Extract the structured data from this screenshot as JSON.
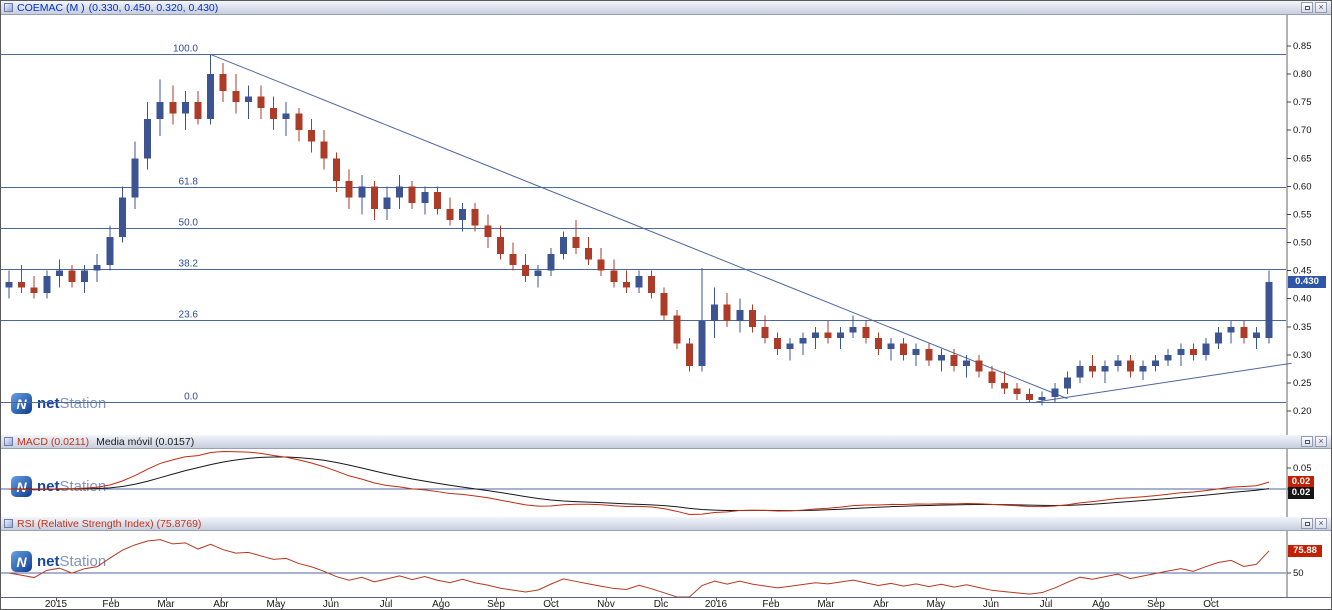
{
  "window_controls": {
    "close": "×"
  },
  "panels": {
    "price": {
      "symbol": "COEMAC (M )",
      "ohlc_text": "(0.330, 0.450, 0.320, 0.430)",
      "last_price_label": "0.430"
    },
    "macd": {
      "title": "MACD (0.0211)",
      "subtitle": "Media móvil (0.0157)",
      "value_badge": "0.02",
      "signal_badge": "0.02"
    },
    "rsi": {
      "title": "RSI (Relative Strength Index) (75.8769)",
      "value_badge": "75.88"
    }
  },
  "watermark": {
    "icon_letter": "N",
    "brand_bold": "net",
    "brand_light": "Station"
  },
  "chart_data": [
    {
      "type": "candlestick",
      "symbol": "COEMAC",
      "timeframe": "M",
      "last_ohlc": {
        "open": 0.33,
        "high": 0.45,
        "low": 0.32,
        "close": 0.43
      },
      "last_close": 0.43,
      "ylim": [
        0.157,
        0.907
      ],
      "y_ticks": [
        0.85,
        0.8,
        0.75,
        0.7,
        0.65,
        0.6,
        0.55,
        0.5,
        0.45,
        0.4,
        0.35,
        0.3,
        0.25,
        0.2
      ],
      "colors": {
        "up": "#3d5493",
        "down": "#ac3b28",
        "grid": "#4c66a0",
        "fib_label": "#2d4a96"
      },
      "fib_levels": [
        {
          "label": "100.0",
          "price": 0.835
        },
        {
          "label": "61.8",
          "price": 0.598
        },
        {
          "label": "50.0",
          "price": 0.525
        },
        {
          "label": "38.2",
          "price": 0.452
        },
        {
          "label": "23.6",
          "price": 0.361
        },
        {
          "label": "0.0",
          "price": 0.215
        }
      ],
      "trendlines": [
        {
          "name": "descending-resistance",
          "i1": 16,
          "p1": 0.835,
          "i2": 84,
          "p2": 0.222
        },
        {
          "name": "ascending-support",
          "i1": 81.5,
          "p1": 0.216,
          "i2": 101.8,
          "p2": 0.285
        }
      ],
      "x_axis": {
        "labels": [
          "2015",
          "Feb",
          "Mar",
          "Abr",
          "May",
          "Jun",
          "Jul",
          "Ago",
          "Sep",
          "Oct",
          "Nov",
          "Dic",
          "2016",
          "Feb",
          "Mar",
          "Abr",
          "May",
          "Jun",
          "Jul",
          "Ago",
          "Sep",
          "Oct"
        ],
        "first_tick_index": 3.73,
        "ticks_every_n_candles": 4.365
      },
      "ohlc": [
        [
          0.42,
          0.45,
          0.4,
          0.43
        ],
        [
          0.43,
          0.46,
          0.41,
          0.42
        ],
        [
          0.42,
          0.44,
          0.4,
          0.41
        ],
        [
          0.41,
          0.45,
          0.4,
          0.44
        ],
        [
          0.44,
          0.47,
          0.42,
          0.45
        ],
        [
          0.45,
          0.46,
          0.42,
          0.43
        ],
        [
          0.43,
          0.46,
          0.41,
          0.45
        ],
        [
          0.45,
          0.48,
          0.43,
          0.46
        ],
        [
          0.46,
          0.53,
          0.45,
          0.51
        ],
        [
          0.51,
          0.6,
          0.5,
          0.58
        ],
        [
          0.58,
          0.68,
          0.56,
          0.65
        ],
        [
          0.65,
          0.75,
          0.63,
          0.72
        ],
        [
          0.72,
          0.79,
          0.69,
          0.75
        ],
        [
          0.75,
          0.78,
          0.71,
          0.73
        ],
        [
          0.73,
          0.77,
          0.7,
          0.75
        ],
        [
          0.75,
          0.77,
          0.71,
          0.72
        ],
        [
          0.72,
          0.835,
          0.71,
          0.8
        ],
        [
          0.8,
          0.82,
          0.75,
          0.77
        ],
        [
          0.77,
          0.8,
          0.73,
          0.75
        ],
        [
          0.75,
          0.78,
          0.72,
          0.76
        ],
        [
          0.76,
          0.78,
          0.72,
          0.74
        ],
        [
          0.74,
          0.76,
          0.7,
          0.72
        ],
        [
          0.72,
          0.75,
          0.69,
          0.73
        ],
        [
          0.73,
          0.74,
          0.68,
          0.7
        ],
        [
          0.7,
          0.72,
          0.66,
          0.68
        ],
        [
          0.68,
          0.7,
          0.63,
          0.65
        ],
        [
          0.65,
          0.66,
          0.59,
          0.61
        ],
        [
          0.61,
          0.63,
          0.56,
          0.58
        ],
        [
          0.58,
          0.62,
          0.55,
          0.6
        ],
        [
          0.6,
          0.61,
          0.54,
          0.56
        ],
        [
          0.56,
          0.6,
          0.54,
          0.58
        ],
        [
          0.58,
          0.62,
          0.56,
          0.6
        ],
        [
          0.6,
          0.61,
          0.56,
          0.57
        ],
        [
          0.57,
          0.6,
          0.55,
          0.59
        ],
        [
          0.59,
          0.6,
          0.55,
          0.56
        ],
        [
          0.56,
          0.58,
          0.53,
          0.54
        ],
        [
          0.54,
          0.57,
          0.52,
          0.56
        ],
        [
          0.56,
          0.57,
          0.52,
          0.53
        ],
        [
          0.53,
          0.55,
          0.49,
          0.51
        ],
        [
          0.51,
          0.53,
          0.47,
          0.48
        ],
        [
          0.48,
          0.5,
          0.45,
          0.46
        ],
        [
          0.46,
          0.48,
          0.43,
          0.44
        ],
        [
          0.44,
          0.46,
          0.42,
          0.45
        ],
        [
          0.45,
          0.49,
          0.44,
          0.48
        ],
        [
          0.48,
          0.52,
          0.47,
          0.51
        ],
        [
          0.51,
          0.54,
          0.48,
          0.49
        ],
        [
          0.49,
          0.51,
          0.46,
          0.47
        ],
        [
          0.47,
          0.49,
          0.44,
          0.45
        ],
        [
          0.45,
          0.47,
          0.42,
          0.43
        ],
        [
          0.43,
          0.45,
          0.41,
          0.42
        ],
        [
          0.42,
          0.45,
          0.41,
          0.44
        ],
        [
          0.44,
          0.45,
          0.4,
          0.41
        ],
        [
          0.41,
          0.42,
          0.36,
          0.37
        ],
        [
          0.37,
          0.38,
          0.31,
          0.32
        ],
        [
          0.32,
          0.33,
          0.27,
          0.28
        ],
        [
          0.28,
          0.455,
          0.27,
          0.36
        ],
        [
          0.36,
          0.42,
          0.33,
          0.39
        ],
        [
          0.39,
          0.41,
          0.35,
          0.36
        ],
        [
          0.36,
          0.4,
          0.34,
          0.38
        ],
        [
          0.38,
          0.39,
          0.34,
          0.35
        ],
        [
          0.35,
          0.37,
          0.32,
          0.33
        ],
        [
          0.33,
          0.34,
          0.3,
          0.31
        ],
        [
          0.31,
          0.33,
          0.29,
          0.32
        ],
        [
          0.32,
          0.34,
          0.3,
          0.33
        ],
        [
          0.33,
          0.35,
          0.31,
          0.34
        ],
        [
          0.34,
          0.36,
          0.32,
          0.33
        ],
        [
          0.33,
          0.35,
          0.31,
          0.34
        ],
        [
          0.34,
          0.37,
          0.33,
          0.35
        ],
        [
          0.35,
          0.36,
          0.32,
          0.33
        ],
        [
          0.33,
          0.34,
          0.3,
          0.31
        ],
        [
          0.31,
          0.33,
          0.29,
          0.32
        ],
        [
          0.32,
          0.33,
          0.29,
          0.3
        ],
        [
          0.3,
          0.32,
          0.28,
          0.31
        ],
        [
          0.31,
          0.32,
          0.28,
          0.29
        ],
        [
          0.29,
          0.31,
          0.27,
          0.3
        ],
        [
          0.3,
          0.31,
          0.27,
          0.28
        ],
        [
          0.28,
          0.3,
          0.26,
          0.29
        ],
        [
          0.29,
          0.3,
          0.26,
          0.27
        ],
        [
          0.27,
          0.28,
          0.24,
          0.25
        ],
        [
          0.25,
          0.27,
          0.23,
          0.24
        ],
        [
          0.24,
          0.25,
          0.22,
          0.23
        ],
        [
          0.23,
          0.24,
          0.215,
          0.22
        ],
        [
          0.22,
          0.235,
          0.21,
          0.225
        ],
        [
          0.225,
          0.25,
          0.215,
          0.24
        ],
        [
          0.24,
          0.27,
          0.23,
          0.26
        ],
        [
          0.26,
          0.29,
          0.25,
          0.28
        ],
        [
          0.28,
          0.3,
          0.26,
          0.27
        ],
        [
          0.27,
          0.29,
          0.25,
          0.28
        ],
        [
          0.28,
          0.3,
          0.27,
          0.29
        ],
        [
          0.29,
          0.3,
          0.26,
          0.27
        ],
        [
          0.27,
          0.29,
          0.255,
          0.28
        ],
        [
          0.28,
          0.3,
          0.27,
          0.29
        ],
        [
          0.29,
          0.31,
          0.28,
          0.3
        ],
        [
          0.3,
          0.32,
          0.28,
          0.31
        ],
        [
          0.31,
          0.32,
          0.29,
          0.3
        ],
        [
          0.3,
          0.33,
          0.29,
          0.32
        ],
        [
          0.32,
          0.35,
          0.31,
          0.34
        ],
        [
          0.34,
          0.36,
          0.32,
          0.35
        ],
        [
          0.35,
          0.36,
          0.32,
          0.33
        ],
        [
          0.33,
          0.35,
          0.31,
          0.34
        ],
        [
          0.33,
          0.45,
          0.32,
          0.43
        ]
      ]
    },
    {
      "type": "line",
      "name": "MACD",
      "title": "MACD (0.0211)",
      "derived_from": "closes of the candlestick series above",
      "params": {
        "fast": 12,
        "slow": 26,
        "signal_period": 9
      },
      "legend": [
        {
          "name": "MACD",
          "color": "#c22b12",
          "current_value": 0.0211
        },
        {
          "name": "Media móvil",
          "color": "#181818",
          "current_value": 0.0157
        }
      ],
      "y_ticks": [
        0.05,
        0.0
      ],
      "zero_line": true
    },
    {
      "type": "line",
      "name": "RSI",
      "title": "RSI (Relative Strength Index) (75.8769)",
      "derived_from": "closes of the candlestick series above",
      "params": {
        "period": 14
      },
      "current_value": 75.8769,
      "y_ticks": [
        50
      ],
      "ylim": [
        26,
        92
      ],
      "color": "#b5391f"
    }
  ]
}
